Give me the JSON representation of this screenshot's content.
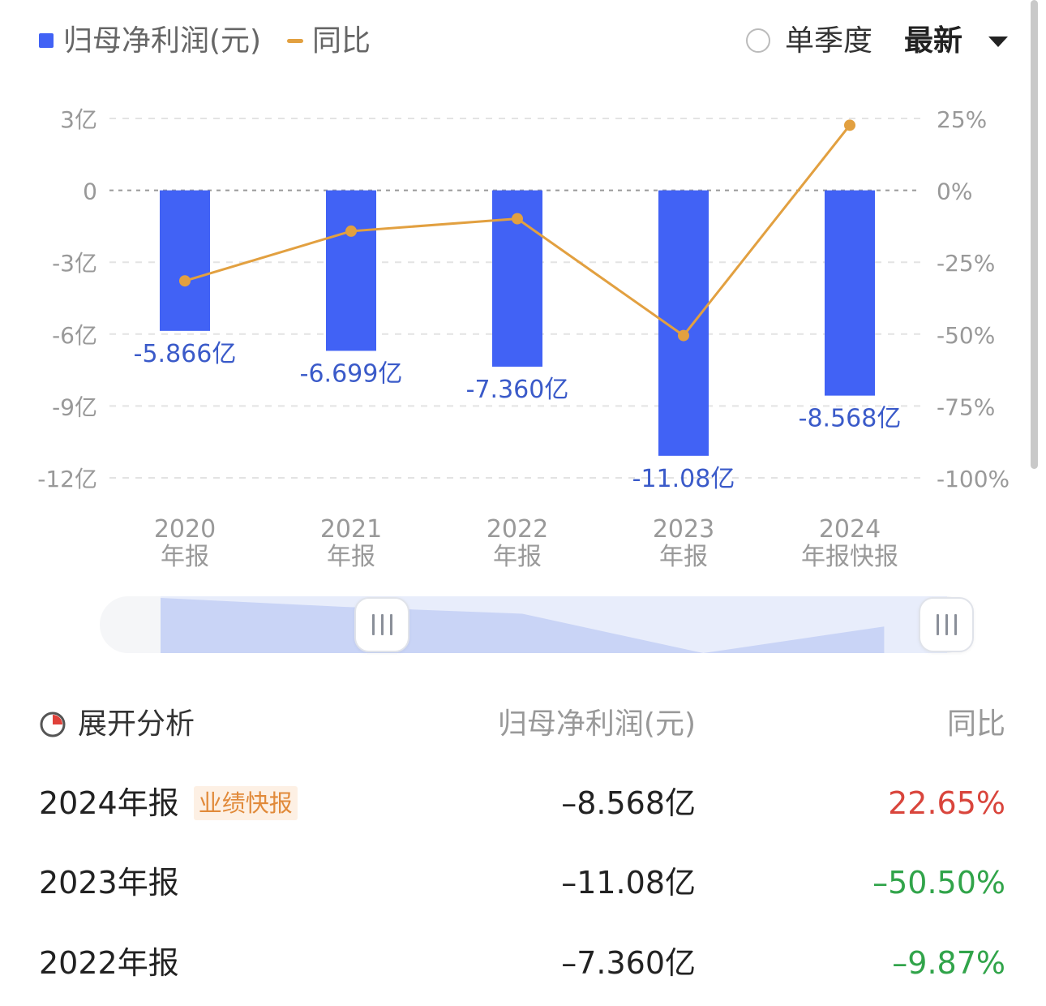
{
  "legend": {
    "bar_label": "归母净利润(元)",
    "line_label": "同比",
    "bar_color": "#4162f5",
    "line_color": "#e2a040"
  },
  "controls": {
    "single_quarter_label": "单季度",
    "single_quarter_checked": false,
    "period_selected": "最新"
  },
  "chart_data": {
    "type": "bar",
    "categories": [
      [
        "2020",
        "年报"
      ],
      [
        "2021",
        "年报"
      ],
      [
        "2022",
        "年报"
      ],
      [
        "2023",
        "年报"
      ],
      [
        "2024",
        "年报快报"
      ]
    ],
    "series": [
      {
        "name": "归母净利润(元)",
        "type": "bar",
        "axis": "left",
        "values": [
          -5.866,
          -6.699,
          -7.36,
          -11.08,
          -8.568
        ],
        "labels": [
          "-5.866亿",
          "-6.699亿",
          "-7.360亿",
          "-11.08亿",
          "-8.568亿"
        ]
      },
      {
        "name": "同比",
        "type": "line",
        "axis": "right",
        "values": [
          -31.5,
          -14.2,
          -9.87,
          -50.5,
          22.65
        ]
      }
    ],
    "y_left": {
      "ylim": [
        -12,
        3
      ],
      "ticks": [
        3,
        0,
        -3,
        -6,
        -9,
        -12
      ],
      "tick_labels": [
        "3亿",
        "0",
        "-3亿",
        "-6亿",
        "-9亿",
        "-12亿"
      ]
    },
    "y_right": {
      "ylim": [
        -100,
        25
      ],
      "ticks": [
        25,
        0,
        -25,
        -50,
        -75,
        -100
      ],
      "tick_labels": [
        "25%",
        "0%",
        "-25%",
        "-50%",
        "-75%",
        "-100%"
      ]
    },
    "grid": true,
    "legend_position": "top-left"
  },
  "table": {
    "expand_label": "展开分析",
    "col_value_header": "归母净利润(元)",
    "col_yoy_header": "同比",
    "rows": [
      {
        "period": "2024年报",
        "badge": "业绩快报",
        "value": "–8.568亿",
        "yoy": "22.65%",
        "trend": "up"
      },
      {
        "period": "2023年报",
        "badge": "",
        "value": "–11.08亿",
        "yoy": "–50.50%",
        "trend": "down"
      },
      {
        "period": "2022年报",
        "badge": "",
        "value": "–7.360亿",
        "yoy": "–9.87%",
        "trend": "down"
      }
    ]
  }
}
